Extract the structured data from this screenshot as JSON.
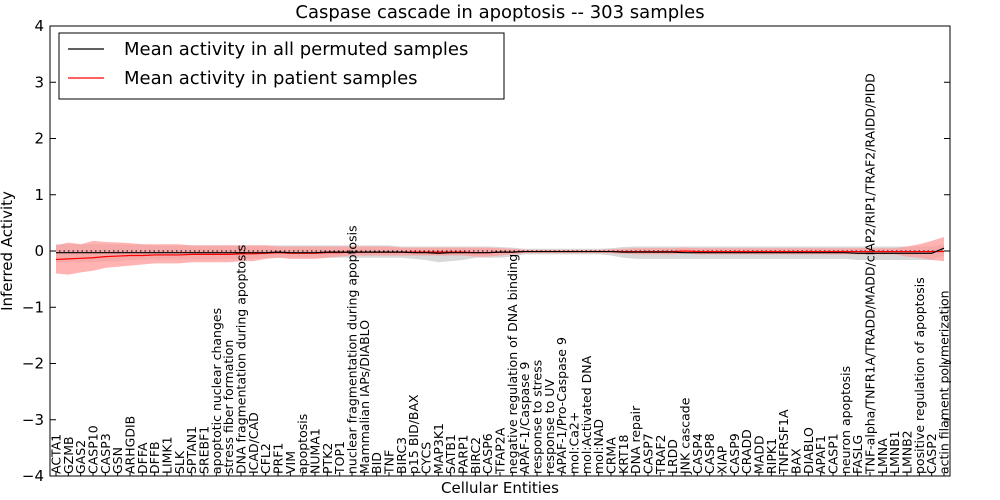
{
  "chart_data": {
    "type": "line",
    "title": "Caspase cascade in apoptosis -- 303 samples",
    "xlabel": "Cellular Entities",
    "ylabel": "Inferred Activity",
    "ylim": [
      -4,
      4
    ],
    "yticks": [
      "4",
      "3",
      "2",
      "1",
      "0",
      "−1",
      "−2",
      "−3",
      "−4"
    ],
    "legend_position": "top-left",
    "categories": [
      "ACTA1",
      "GZMB",
      "GAS2",
      "CASP10",
      "CASP3",
      "GSN",
      "ARHGDIB",
      "DFFA",
      "DFFB",
      "LIMK1",
      "SLK",
      "SPTAN1",
      "SREBF1",
      "apoptotic nuclear changes",
      "stress fiber formation",
      "DNA fragmentation during apoptosis",
      "ICAD/CAD",
      "CFL2",
      "PRF1",
      "VIM",
      "apoptosis",
      "NUMA1",
      "PTK2",
      "TOP1",
      "nuclear fragmentation during apoptosis",
      "Mammalian IAPs/DIABLO",
      "BID",
      "TNF",
      "BIRC3",
      "p15 BID/BAX",
      "CYCS",
      "MAP3K1",
      "SATB1",
      "PARP1",
      "BIRC2",
      "CASP6",
      "TFAP2A",
      "negative regulation of DNA binding",
      "APAF-1/Caspase 9",
      "response to stress",
      "response to UV",
      "APAF-1/Pro-Caspase 9",
      "mol:Ca2+",
      "mol:Activated DNA",
      "mol:NAD",
      "CRMA",
      "KRT18",
      "DNA repair",
      "CASP7",
      "TRAF2",
      "LRDD",
      "JNK cascade",
      "CASP4",
      "CASP8",
      "XIAP",
      "CASP9",
      "CRADD",
      "MADD",
      "RIPK1",
      "TNFRSF1A",
      "BAX",
      "DIABLO",
      "APAF1",
      "CASP1",
      "neuron apoptosis",
      "FASLG",
      "TNF-alpha/TNFR1A/TRADD/MADD/cIAP2/RIP1/TRAF2/RAIDD/PIDD",
      "LMNA",
      "LMNB1",
      "LMNB2",
      "positive regulation of apoptosis",
      "CASP2",
      "actin filament polymerization"
    ],
    "series": [
      {
        "name": "Mean activity in all permuted samples",
        "color": "#000000",
        "values": [
          -0.03,
          -0.03,
          -0.03,
          -0.03,
          -0.03,
          -0.03,
          -0.03,
          -0.03,
          -0.03,
          -0.03,
          -0.03,
          -0.03,
          -0.03,
          -0.03,
          -0.03,
          -0.03,
          -0.03,
          -0.03,
          -0.02,
          -0.03,
          -0.03,
          -0.03,
          -0.02,
          -0.02,
          -0.02,
          -0.02,
          -0.02,
          -0.02,
          -0.02,
          -0.03,
          -0.03,
          -0.04,
          -0.03,
          -0.03,
          -0.03,
          -0.03,
          -0.02,
          -0.02,
          -0.01,
          -0.01,
          -0.01,
          -0.01,
          -0.01,
          -0.01,
          -0.01,
          -0.01,
          -0.02,
          -0.02,
          -0.02,
          -0.02,
          -0.02,
          -0.03,
          -0.03,
          -0.03,
          -0.03,
          -0.03,
          -0.03,
          -0.03,
          -0.03,
          -0.03,
          -0.03,
          -0.03,
          -0.03,
          -0.03,
          -0.03,
          -0.04,
          -0.04,
          -0.04,
          -0.04,
          -0.04,
          -0.04,
          -0.04,
          0.05
        ],
        "band_low": [
          -0.2,
          -0.2,
          -0.2,
          -0.2,
          -0.18,
          -0.18,
          -0.16,
          -0.15,
          -0.15,
          -0.15,
          -0.15,
          -0.15,
          -0.15,
          -0.15,
          -0.14,
          -0.14,
          -0.14,
          -0.12,
          -0.12,
          -0.12,
          -0.12,
          -0.12,
          -0.12,
          -0.12,
          -0.12,
          -0.12,
          -0.12,
          -0.12,
          -0.12,
          -0.14,
          -0.16,
          -0.2,
          -0.18,
          -0.16,
          -0.12,
          -0.12,
          -0.12,
          -0.1,
          -0.06,
          -0.06,
          -0.06,
          -0.06,
          -0.06,
          -0.06,
          -0.06,
          -0.08,
          -0.12,
          -0.14,
          -0.14,
          -0.14,
          -0.14,
          -0.14,
          -0.14,
          -0.14,
          -0.14,
          -0.14,
          -0.14,
          -0.14,
          -0.14,
          -0.14,
          -0.14,
          -0.14,
          -0.14,
          -0.14,
          -0.14,
          -0.16,
          -0.16,
          -0.16,
          -0.16,
          -0.16,
          -0.16,
          -0.16,
          -0.08
        ],
        "band_high": [
          0.12,
          0.12,
          0.12,
          0.12,
          0.12,
          0.12,
          0.11,
          0.11,
          0.1,
          0.1,
          0.1,
          0.1,
          0.1,
          0.1,
          0.1,
          0.1,
          0.1,
          0.1,
          0.1,
          0.1,
          0.1,
          0.1,
          0.1,
          0.1,
          0.1,
          0.1,
          0.1,
          0.1,
          0.08,
          0.08,
          0.08,
          0.08,
          0.08,
          0.08,
          0.08,
          0.08,
          0.07,
          0.06,
          0.04,
          0.04,
          0.04,
          0.04,
          0.04,
          0.04,
          0.04,
          0.05,
          0.07,
          0.08,
          0.08,
          0.08,
          0.08,
          0.08,
          0.08,
          0.08,
          0.08,
          0.08,
          0.08,
          0.08,
          0.08,
          0.08,
          0.08,
          0.08,
          0.08,
          0.08,
          0.08,
          0.08,
          0.08,
          0.08,
          0.08,
          0.08,
          0.08,
          0.08,
          0.12
        ],
        "band_color": "#c8c8c8"
      },
      {
        "name": "Mean activity in patient samples",
        "color": "#ff0000",
        "values": [
          -0.15,
          -0.14,
          -0.13,
          -0.12,
          -0.1,
          -0.09,
          -0.08,
          -0.08,
          -0.07,
          -0.07,
          -0.07,
          -0.06,
          -0.06,
          -0.06,
          -0.06,
          -0.05,
          -0.05,
          -0.04,
          -0.03,
          -0.04,
          -0.04,
          -0.04,
          -0.03,
          -0.03,
          -0.02,
          -0.02,
          -0.02,
          -0.02,
          -0.02,
          -0.02,
          -0.02,
          -0.02,
          -0.02,
          -0.02,
          -0.03,
          -0.03,
          -0.02,
          -0.02,
          -0.01,
          -0.01,
          -0.01,
          -0.01,
          -0.01,
          -0.01,
          -0.01,
          -0.01,
          -0.01,
          -0.01,
          -0.01,
          -0.01,
          -0.01,
          0.0,
          -0.01,
          -0.01,
          -0.01,
          -0.01,
          -0.01,
          -0.01,
          -0.01,
          -0.01,
          -0.01,
          -0.01,
          -0.01,
          -0.01,
          -0.01,
          -0.01,
          -0.01,
          -0.01,
          -0.01,
          -0.01,
          -0.01,
          -0.01,
          -0.01
        ],
        "band_low": [
          -0.4,
          -0.42,
          -0.38,
          -0.35,
          -0.3,
          -0.28,
          -0.26,
          -0.24,
          -0.22,
          -0.22,
          -0.22,
          -0.2,
          -0.2,
          -0.2,
          -0.2,
          -0.18,
          -0.18,
          -0.14,
          -0.12,
          -0.14,
          -0.14,
          -0.14,
          -0.12,
          -0.1,
          -0.08,
          -0.08,
          -0.08,
          -0.08,
          -0.08,
          -0.08,
          -0.08,
          -0.08,
          -0.08,
          -0.08,
          -0.1,
          -0.1,
          -0.08,
          -0.06,
          -0.03,
          -0.03,
          -0.03,
          -0.03,
          -0.03,
          -0.03,
          -0.03,
          -0.04,
          -0.05,
          -0.06,
          -0.06,
          -0.06,
          -0.06,
          -0.04,
          -0.06,
          -0.06,
          -0.06,
          -0.06,
          -0.06,
          -0.06,
          -0.06,
          -0.06,
          -0.06,
          -0.06,
          -0.06,
          -0.06,
          -0.06,
          -0.06,
          -0.06,
          -0.06,
          -0.06,
          -0.1,
          -0.12,
          -0.16,
          -0.18
        ],
        "band_high": [
          0.1,
          0.15,
          0.12,
          0.18,
          0.16,
          0.15,
          0.14,
          0.12,
          0.12,
          0.12,
          0.12,
          0.1,
          0.1,
          0.1,
          0.1,
          0.1,
          0.1,
          0.1,
          0.08,
          0.08,
          0.08,
          0.08,
          0.08,
          0.08,
          0.08,
          0.08,
          0.08,
          0.08,
          0.06,
          0.06,
          0.06,
          0.06,
          0.06,
          0.06,
          0.06,
          0.06,
          0.05,
          0.04,
          0.02,
          0.02,
          0.02,
          0.02,
          0.02,
          0.02,
          0.02,
          0.03,
          0.04,
          0.05,
          0.05,
          0.05,
          0.05,
          0.06,
          0.05,
          0.05,
          0.05,
          0.05,
          0.05,
          0.05,
          0.05,
          0.05,
          0.05,
          0.05,
          0.05,
          0.05,
          0.05,
          0.05,
          0.05,
          0.05,
          0.05,
          0.08,
          0.12,
          0.18,
          0.25
        ],
        "band_color": "#ff9999"
      }
    ],
    "reference_line": 0
  }
}
